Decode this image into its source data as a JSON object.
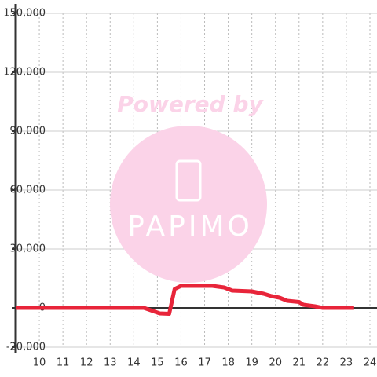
{
  "chart_data": {
    "type": "line",
    "annotations": [
      "Powered by",
      "PAPIMO"
    ],
    "x": [
      9,
      14.43,
      15.1,
      15.5,
      15.73,
      16,
      17.33,
      17.83,
      18.17,
      19,
      19.5,
      19.83,
      20.17,
      20.5,
      21,
      21.17,
      21.67,
      22,
      23.33
    ],
    "series": [
      {
        "color": "#e8253a",
        "values": [
          0,
          0,
          -2800,
          -3000,
          9600,
          11200,
          11200,
          10400,
          8800,
          8400,
          7200,
          6000,
          5200,
          3600,
          3000,
          1600,
          800,
          0,
          0
        ]
      }
    ],
    "xlim": [
      9,
      24.3
    ],
    "xticks": [
      10,
      11,
      12,
      13,
      14,
      15,
      16,
      17,
      18,
      19,
      20,
      21,
      22,
      23,
      24
    ],
    "ylim": [
      -20000,
      150000
    ],
    "yticks": [
      {
        "value": -20000,
        "label": "-20,000"
      },
      0,
      {
        "value": 30000,
        "label": "30,000"
      },
      {
        "value": 60000,
        "label": "60,000"
      },
      {
        "value": 90000,
        "label": "90,000"
      },
      {
        "value": 120000,
        "label": "120,000"
      },
      {
        "value": 150000,
        "label": "150,000"
      }
    ],
    "grid": true
  }
}
